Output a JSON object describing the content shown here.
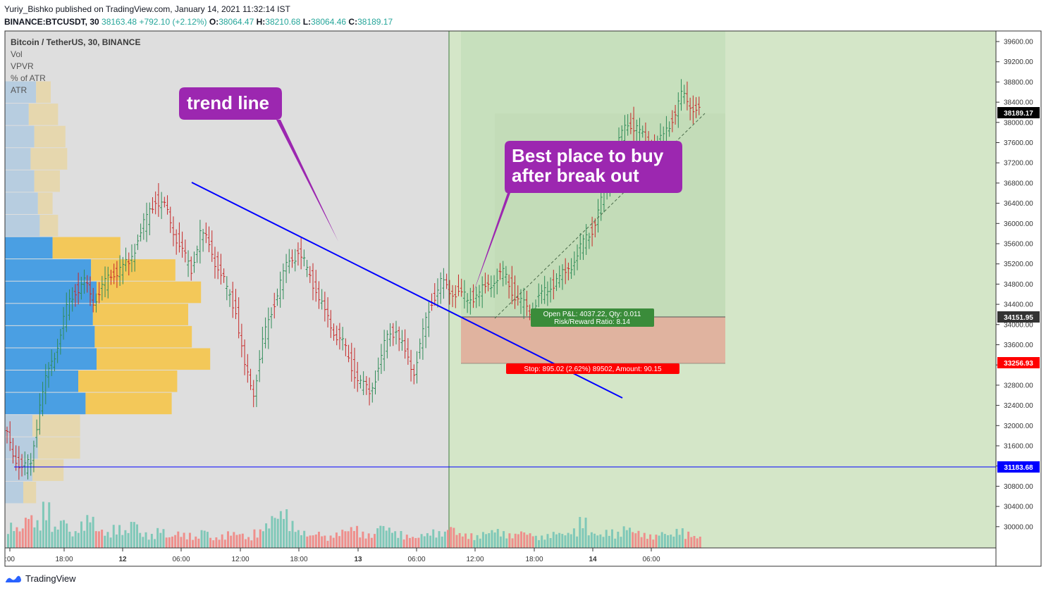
{
  "header": {
    "publisher_line": "Yuriy_Bishko published on TradingView.com, January 14, 2021 11:32:14 IST",
    "symbol": "BINANCE:BTCUSDT, 30",
    "last": "38163.48",
    "change": "+792.10 (+2.12%)",
    "o_label": "O:",
    "o_value": "38064.47",
    "h_label": "H:",
    "h_value": "38210.68",
    "l_label": "L:",
    "l_value": "38064.46",
    "c_label": "C:",
    "c_value": "38189.17"
  },
  "legend": [
    "Bitcoin / TetherUS, 30, BINANCE",
    "Vol",
    "VPVR",
    "% of ATR",
    "ATR"
  ],
  "annotations": {
    "trend_line_label": "trend line",
    "buy_label_line1": "Best place to buy",
    "buy_label_line2": "after break out",
    "position_pl": "Open P&L: 4037.22, Qty: 0.011",
    "position_rr": "Risk/Reward Ratio: 8.14",
    "stop_label": "Stop: 895.02 (2.62%) 89502, Amount: 90.15"
  },
  "price_tags": {
    "current": "38189.17",
    "entry": "34151.95",
    "stop": "33256.93",
    "support": "31183.68"
  },
  "footer": {
    "brand": "TradingView"
  },
  "colors": {
    "up": "#26a69a",
    "down": "#ef5350",
    "trend": "#0000ff",
    "callout": "#9c27b0",
    "profit_zone": "#d4e6c8",
    "stop_zone": "#e0b39f",
    "pane_bg": "#dedede"
  },
  "chart_data": {
    "type": "candlestick",
    "title": "Bitcoin / TetherUS, 30, BINANCE",
    "interval": "30",
    "x_tick_labels": [
      ":00",
      "18:00",
      "12",
      "06:00",
      "12:00",
      "18:00",
      "13",
      "06:00",
      "12:00",
      "18:00",
      "14",
      "06:00"
    ],
    "y_tick_labels": [
      "39600.00",
      "39200.00",
      "38800.00",
      "38400.00",
      "38000.00",
      "37600.00",
      "37200.00",
      "36800.00",
      "36400.00",
      "36000.00",
      "35600.00",
      "35200.00",
      "34800.00",
      "34400.00",
      "34000.00",
      "33600.00",
      "33200.00",
      "32800.00",
      "32400.00",
      "32000.00",
      "31600.00",
      "31200.00",
      "30800.00",
      "30400.00",
      "30000.00"
    ],
    "ylim": [
      29500,
      39800
    ],
    "close_path": [
      31900,
      31500,
      31100,
      31300,
      32400,
      33100,
      33600,
      34300,
      34700,
      34800,
      34500,
      34700,
      35000,
      35100,
      35200,
      35700,
      36100,
      36500,
      36300,
      35900,
      35400,
      35100,
      35800,
      35600,
      35100,
      34700,
      34300,
      33100,
      32700,
      33600,
      34300,
      34800,
      35300,
      35400,
      35100,
      34700,
      34200,
      33900,
      33600,
      33200,
      32800,
      32700,
      33100,
      33800,
      33900,
      33400,
      33100,
      33800,
      34500,
      34800,
      34700,
      34600,
      34500,
      34600,
      34700,
      34900,
      35000,
      34700,
      34400,
      34300,
      34500,
      34700,
      34900,
      35000,
      35300,
      35600,
      35900,
      36400,
      37000,
      37600,
      38000,
      37900,
      37600,
      37500,
      37700,
      38100,
      38500,
      38400,
      38189
    ],
    "trend_line": {
      "start_price": 36800,
      "end_price": 32550
    },
    "support_level": 31183.68,
    "position": {
      "entry": 34151.95,
      "stop": 33256.93,
      "target": 39600
    },
    "volume": [
      0.45,
      0.38,
      0.62,
      0.5,
      0.82,
      0.4,
      0.55,
      0.3,
      0.47,
      0.6,
      0.35,
      0.29,
      0.41,
      0.33,
      0.52,
      0.28,
      0.25,
      0.36,
      0.22,
      0.3,
      0.27,
      0.21,
      0.35,
      0.19,
      0.24,
      0.3,
      0.28,
      0.2,
      0.33,
      0.45,
      0.62,
      0.7,
      0.48,
      0.32,
      0.25,
      0.3,
      0.22,
      0.28,
      0.35,
      0.4,
      0.29,
      0.26,
      0.44,
      0.38,
      0.3,
      0.24,
      0.21,
      0.27,
      0.33,
      0.3,
      0.41,
      0.28,
      0.26,
      0.23,
      0.3,
      0.35,
      0.3,
      0.26,
      0.32,
      0.28,
      0.22,
      0.25,
      0.3,
      0.28,
      0.35,
      0.55,
      0.3,
      0.26,
      0.33,
      0.29,
      0.4,
      0.32,
      0.27,
      0.24,
      0.3,
      0.26,
      0.35,
      0.29,
      0.22
    ],
    "volume_profile_rows": [
      {
        "up": 0.34,
        "down": 0.16
      },
      {
        "up": 0.26,
        "down": 0.32
      },
      {
        "up": 0.32,
        "down": 0.34
      },
      {
        "up": 0.28,
        "down": 0.4
      },
      {
        "up": 0.32,
        "down": 0.28
      },
      {
        "up": 0.36,
        "down": 0.16
      },
      {
        "up": 0.38,
        "down": 0.2
      },
      {
        "up": 0.52,
        "down": 0.74
      },
      {
        "up": 0.94,
        "down": 0.92
      },
      {
        "up": 1.0,
        "down": 1.14
      },
      {
        "up": 0.96,
        "down": 1.04
      },
      {
        "up": 0.98,
        "down": 1.06
      },
      {
        "up": 1.0,
        "down": 1.24
      },
      {
        "up": 0.8,
        "down": 1.08
      },
      {
        "up": 0.88,
        "down": 0.94
      },
      {
        "up": 0.3,
        "down": 0.52
      },
      {
        "up": 0.36,
        "down": 0.46
      },
      {
        "up": 0.3,
        "down": 0.34
      },
      {
        "up": 0.2,
        "down": 0.14
      }
    ]
  }
}
